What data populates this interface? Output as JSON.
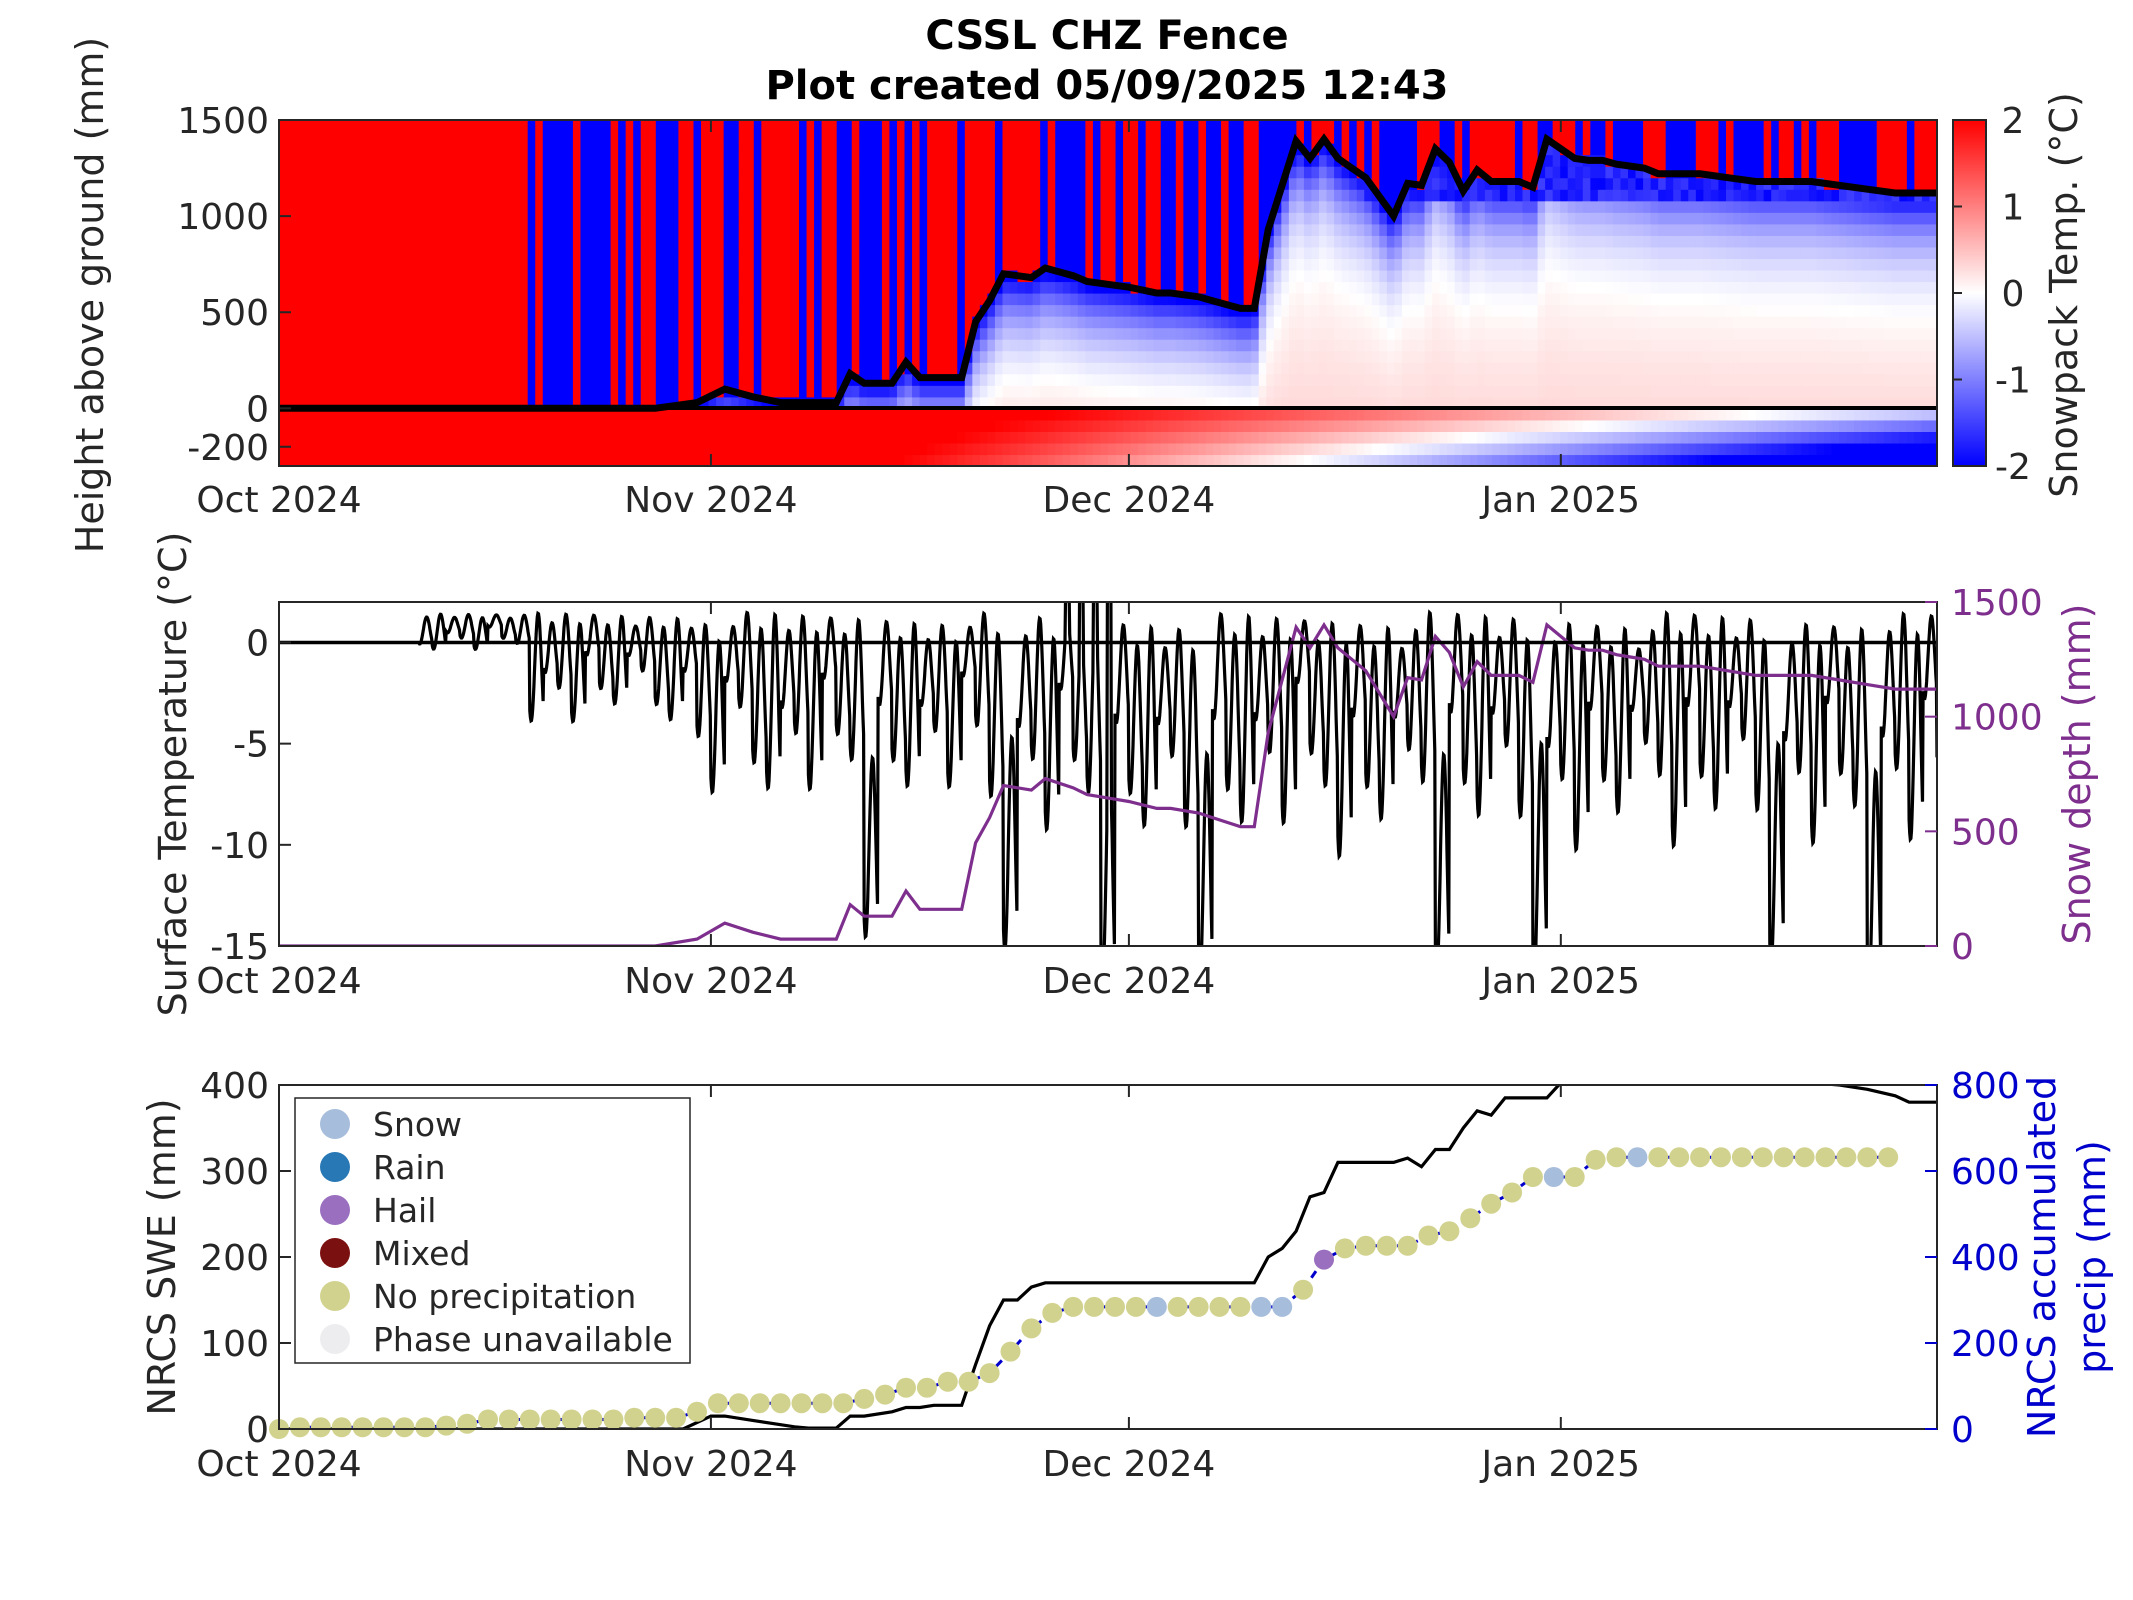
{
  "header": {
    "title": "CSSL CHZ Fence",
    "subtitle": "Plot created 05/09/2025 12:43"
  },
  "chart_data": [
    {
      "type": "heatmap",
      "ylabel": "Height above ground (mm)",
      "colorbar_label": "Snowpack Temp. (°C)",
      "colorbar_ticks": [
        "-2",
        "-1",
        "0",
        "1",
        "2"
      ],
      "clim": [
        -2,
        2
      ],
      "colormap": [
        "#0000ff",
        "#ffffff",
        "#ff0000"
      ],
      "xticks": [
        "Oct 2024",
        "Nov 2024",
        "Dec 2024",
        "Jan 2025"
      ],
      "yticks": [
        "1500",
        "1000",
        "500",
        "0",
        "-200"
      ],
      "ylim": [
        -300,
        1500
      ],
      "xlim_days": [
        0,
        119
      ],
      "snow_depth_overlay": {
        "x": [
          0,
          27,
          30,
          32,
          34,
          36,
          40,
          41,
          42,
          44,
          45,
          46,
          49,
          50,
          51,
          52,
          54,
          55,
          57,
          58,
          60,
          61,
          63,
          64,
          66,
          67,
          69,
          70,
          71,
          73,
          74,
          75,
          76,
          77,
          78,
          79,
          80,
          81,
          82,
          83,
          84,
          85,
          86,
          87,
          88,
          89,
          90,
          91,
          92,
          93,
          94,
          95,
          96,
          97,
          98,
          99,
          100,
          102,
          104,
          106,
          108,
          110,
          112,
          114,
          116,
          118,
          119
        ],
        "y": [
          0,
          0,
          30,
          100,
          60,
          30,
          30,
          180,
          130,
          130,
          240,
          160,
          160,
          450,
          560,
          700,
          680,
          730,
          690,
          660,
          640,
          630,
          600,
          600,
          580,
          560,
          520,
          520,
          930,
          1390,
          1300,
          1400,
          1300,
          1250,
          1200,
          1100,
          1000,
          1170,
          1160,
          1350,
          1280,
          1130,
          1240,
          1180,
          1180,
          1180,
          1150,
          1400,
          1350,
          1300,
          1290,
          1290,
          1270,
          1260,
          1250,
          1220,
          1220,
          1220,
          1200,
          1180,
          1180,
          1180,
          1160,
          1140,
          1120,
          1120,
          1120
        ]
      }
    },
    {
      "type": "line",
      "ylabel": "Surface Temperature (°C)",
      "y2label": "Snow depth (mm)",
      "xticks": [
        "Oct 2024",
        "Nov 2024",
        "Dec 2024",
        "Jan 2025"
      ],
      "yticks": [
        "0",
        "-5",
        "-10",
        "-15"
      ],
      "y2ticks": [
        "1500",
        "1000",
        "500",
        "0"
      ],
      "ylim": [
        -15,
        2
      ],
      "y2lim": [
        0,
        1500
      ],
      "colors": {
        "surface_temperature": "#000000",
        "snow_depth": "#7e2f8e"
      }
    },
    {
      "type": "scatter",
      "ylabel": "NRCS SWE (mm)",
      "y2label": "NRCS accumulated precip (mm)",
      "y2label_lines": [
        "NRCS accumulated",
        "precip (mm)"
      ],
      "xticks": [
        "Oct 2024",
        "Nov 2024",
        "Dec 2024",
        "Jan 2025"
      ],
      "yticks": [
        "400",
        "300",
        "200",
        "100",
        "0"
      ],
      "y2ticks": [
        "800",
        "600",
        "400",
        "200",
        "0"
      ],
      "ylim": [
        0,
        400
      ],
      "y2lim": [
        0,
        800
      ],
      "legend": {
        "position": "top-left",
        "items": [
          {
            "label": "Snow",
            "color": "#a6bddb"
          },
          {
            "label": "Rain",
            "color": "#2878b5"
          },
          {
            "label": "Hail",
            "color": "#9a6fbf"
          },
          {
            "label": "Mixed",
            "color": "#7b1010"
          },
          {
            "label": "No precipitation",
            "color": "#d2d28f"
          },
          {
            "label": "Phase unavailable",
            "color": "#ededef"
          }
        ]
      },
      "swe_points": {
        "x": [
          0,
          1.5,
          3,
          4.5,
          6,
          7.5,
          9,
          10.5,
          12,
          13.5,
          15,
          16.5,
          18,
          19.5,
          21,
          22.5,
          24,
          25.5,
          27,
          28.5,
          30,
          31.5,
          33,
          34.5,
          36,
          37.5,
          39,
          40.5,
          42,
          43.5,
          45,
          46.5,
          48,
          49.5,
          51,
          52.5,
          54,
          55.5,
          57,
          58.5,
          60,
          61.5,
          63,
          64.5,
          66,
          67.5,
          69,
          70.5,
          72,
          73.5,
          75,
          76.5,
          78,
          79.5,
          81,
          82.5,
          84,
          85.5,
          87,
          88.5,
          90,
          91.5,
          93,
          94.5,
          96,
          97.5,
          99,
          100.5,
          102,
          103.5,
          105,
          106.5,
          108,
          109.5,
          111,
          112.5,
          114,
          115.5
        ],
        "swe": [
          0,
          2,
          2,
          2,
          2,
          2,
          2,
          2,
          4,
          6,
          11,
          11,
          11,
          11,
          11,
          11,
          11,
          13,
          13,
          13,
          20,
          30,
          30,
          30,
          30,
          30,
          30,
          30,
          35,
          40,
          48,
          48,
          55,
          55,
          65,
          90,
          117,
          135,
          142,
          142,
          142,
          142,
          142,
          142,
          142,
          142,
          142,
          142,
          142,
          162,
          197,
          210,
          213,
          213,
          213,
          225,
          230,
          245,
          262,
          275,
          293,
          293,
          293,
          313,
          316,
          316,
          316,
          316,
          316,
          316,
          316,
          316,
          316,
          316,
          316,
          316,
          316,
          316
        ],
        "phase": [
          "none",
          "none",
          "none",
          "none",
          "none",
          "none",
          "none",
          "none",
          "none",
          "none",
          "none",
          "none",
          "none",
          "none",
          "none",
          "none",
          "none",
          "none",
          "none",
          "none",
          "none",
          "none",
          "none",
          "none",
          "none",
          "none",
          "none",
          "none",
          "none",
          "none",
          "none",
          "none",
          "none",
          "none",
          "none",
          "none",
          "none",
          "none",
          "none",
          "none",
          "none",
          "none",
          "snow",
          "none",
          "none",
          "none",
          "none",
          "snow",
          "snow",
          "none",
          "hail",
          "none",
          "none",
          "none",
          "none",
          "none",
          "none",
          "none",
          "none",
          "none",
          "none",
          "snow",
          "none",
          "none",
          "none",
          "snow",
          "none",
          "none",
          "none",
          "none",
          "none",
          "none",
          "none",
          "none",
          "none",
          "none",
          "none",
          "none"
        ]
      },
      "precip_line": {
        "x": [
          0,
          29,
          31,
          32,
          34,
          36,
          37,
          38,
          40,
          41,
          42,
          44,
          45,
          46,
          47,
          48,
          49,
          50,
          51,
          52,
          53,
          54,
          55,
          56,
          57,
          60,
          65,
          70,
          71,
          72,
          73,
          74,
          75,
          76,
          77,
          78,
          79,
          80,
          81,
          82,
          83,
          84,
          85,
          86,
          87,
          88,
          89,
          90,
          91,
          92,
          100,
          105,
          110,
          112,
          114,
          116,
          117,
          119
        ],
        "y": [
          0,
          0,
          30,
          30,
          20,
          10,
          5,
          2,
          2,
          30,
          30,
          40,
          50,
          50,
          55,
          55,
          55,
          150,
          240,
          300,
          300,
          330,
          340,
          340,
          340,
          340,
          340,
          340,
          400,
          420,
          460,
          540,
          550,
          620,
          620,
          620,
          620,
          620,
          630,
          610,
          650,
          650,
          700,
          740,
          730,
          770,
          770,
          770,
          770,
          805,
          805,
          805,
          805,
          800,
          790,
          775,
          760,
          760
        ]
      }
    }
  ]
}
